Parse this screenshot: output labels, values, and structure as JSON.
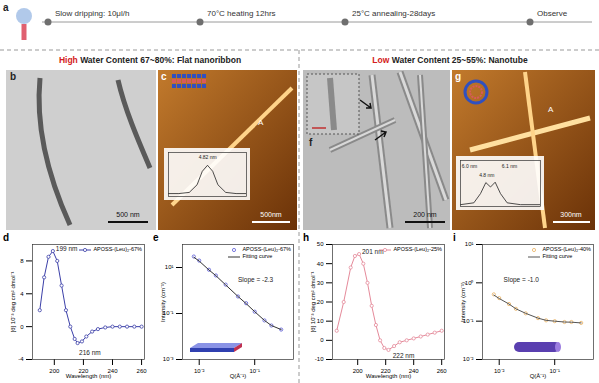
{
  "panel_a": {
    "label": "a",
    "steps": [
      "Slow dripping: 10μl/h",
      "70°C heating 12hrs",
      "25°C annealing-28days",
      "Observe"
    ]
  },
  "sections": [
    {
      "emphasis": "High",
      "title": "Water Content 67~80%: Flat nanoribbon"
    },
    {
      "emphasis": "Low",
      "title": "Water Content 25~55%: Nanotube"
    }
  ],
  "images": [
    {
      "label": "b",
      "scale_bar": "500 nm"
    },
    {
      "label": "c",
      "scale_bar": "500nm",
      "marker": "A"
    },
    {
      "label": "f",
      "scale_bar": "200 nm"
    },
    {
      "label": "g",
      "scale_bar": "300nm",
      "marker": "A"
    }
  ],
  "chart_data": [
    {
      "label": "d",
      "type": "line",
      "xlabel": "Wavelength (nm)",
      "ylabel": "[θ] 10⁻³ deg cm² dmol⁻¹",
      "x": [
        190,
        193,
        196,
        199,
        202,
        205,
        208,
        211,
        214,
        216,
        219,
        222,
        226,
        230,
        235,
        240,
        245,
        250,
        255,
        260
      ],
      "series": [
        {
          "name": "APOSS-(Leu)₂-67%",
          "color": "#3b3fa8",
          "marker": "circle",
          "line_style": "solid",
          "values": [
            2,
            6,
            8.5,
            9.2,
            8,
            5,
            2,
            0,
            -1.5,
            -2,
            -1.8,
            -1.2,
            -0.6,
            -0.3,
            -0.1,
            0,
            0,
            0,
            0,
            0
          ]
        }
      ],
      "xlim": [
        185,
        262
      ],
      "xticks": [
        200,
        220,
        240,
        260
      ],
      "ylim": [
        -4,
        10
      ],
      "yticks": [
        -4,
        0,
        4,
        8
      ],
      "legend": "top-right",
      "annotations": [
        {
          "text": "199 nm",
          "x": 201,
          "y": 9.5
        },
        {
          "text": "216 nm",
          "x": 217,
          "y": -3.2
        }
      ]
    },
    {
      "label": "e",
      "type": "line",
      "log": true,
      "xlabel": "Q(Å⁻¹)",
      "ylabel": "Intensity (cm⁻¹)",
      "x": [
        0.008,
        0.01,
        0.015,
        0.02,
        0.03,
        0.05,
        0.07,
        0.1,
        0.15,
        0.2,
        0.3
      ],
      "series": [
        {
          "name": "APOSS-(Leu)₂-67%",
          "color": "#5b5bd6",
          "marker": "circle",
          "line_style": "none",
          "values": [
            30,
            20,
            8,
            4.5,
            1.8,
            0.55,
            0.28,
            0.12,
            0.05,
            0.03,
            0.02
          ]
        },
        {
          "name": "Fitting curve",
          "color": "#333333",
          "line_style": "solid",
          "values": [
            28,
            19,
            7.8,
            4.4,
            1.75,
            0.55,
            0.27,
            0.12,
            0.05,
            0.03,
            0.02
          ]
        }
      ],
      "xlim": [
        0.005,
        0.5
      ],
      "xticks": [
        {
          "value": 0.01,
          "label": "10⁻²"
        },
        {
          "value": 0.1,
          "label": "10⁻¹"
        }
      ],
      "ylim": [
        0.001,
        100
      ],
      "yticks": [
        {
          "value": 0.001,
          "label": "10⁻³"
        },
        {
          "value": 0.1,
          "label": "10⁻¹"
        },
        {
          "value": 10,
          "label": "10¹"
        }
      ],
      "legend": "top-right",
      "annotations": [
        {
          "text": "Slope = -2.3",
          "x": 0.05,
          "y": 3
        }
      ]
    },
    {
      "label": "h",
      "type": "line",
      "xlabel": "Wavelength (nm)",
      "ylabel": "[θ] 10⁻³ deg cm² dmol⁻¹",
      "x": [
        185,
        190,
        195,
        198,
        201,
        204,
        207,
        210,
        213,
        216,
        219,
        222,
        226,
        230,
        235,
        240,
        245,
        250,
        255,
        260
      ],
      "series": [
        {
          "name": "APOSS-(Leu)₂-25%",
          "color": "#e58a9a",
          "marker": "circle",
          "line_style": "solid",
          "values": [
            5,
            20,
            38,
            44,
            45,
            40,
            30,
            18,
            8,
            0,
            -4,
            -5,
            -3,
            -1,
            0,
            1,
            2,
            3,
            4,
            5
          ]
        }
      ],
      "xlim": [
        182,
        262
      ],
      "xticks": [
        200,
        220,
        240,
        260
      ],
      "ylim": [
        -10,
        50
      ],
      "yticks": [
        -10,
        0,
        10,
        20,
        30,
        40,
        50
      ],
      "legend": "top-right",
      "annotations": [
        {
          "text": "201 nm",
          "x": 203,
          "y": 46
        },
        {
          "text": "222 nm",
          "x": 225,
          "y": -8
        }
      ]
    },
    {
      "label": "i",
      "type": "line",
      "log": true,
      "xlabel": "Q(Å⁻¹)",
      "ylabel": "Intensity (cm⁻¹)",
      "x": [
        0.008,
        0.01,
        0.015,
        0.02,
        0.03,
        0.05,
        0.07,
        0.1,
        0.15,
        0.2,
        0.3
      ],
      "series": [
        {
          "name": "APOSS-(Leu)₂-40%",
          "color": "#e8b060",
          "marker": "circle",
          "line_style": "none",
          "values": [
            0.5,
            0.4,
            0.28,
            0.21,
            0.16,
            0.12,
            0.105,
            0.1,
            0.095,
            0.095,
            0.09
          ]
        },
        {
          "name": "Fitting curve",
          "color": "#555555",
          "line_style": "solid",
          "values": [
            0.48,
            0.39,
            0.28,
            0.21,
            0.16,
            0.12,
            0.105,
            0.1,
            0.095,
            0.094,
            0.09
          ]
        }
      ],
      "xlim": [
        0.005,
        0.5
      ],
      "xticks": [
        {
          "value": 0.01,
          "label": "10⁻²"
        },
        {
          "value": 0.1,
          "label": "10⁻¹"
        }
      ],
      "ylim": [
        0.01,
        10
      ],
      "yticks": [
        {
          "value": 0.01,
          "label": "10⁻²"
        },
        {
          "value": 0.1,
          "label": "10⁻¹"
        },
        {
          "value": 1,
          "label": "10⁰"
        },
        {
          "value": 10,
          "label": "10¹"
        }
      ],
      "legend": "top-right",
      "annotations": [
        {
          "text": "Slope = -1.0",
          "x": 0.012,
          "y": 1.2
        }
      ]
    },
    {
      "type": "line",
      "tick_labels": false,
      "x": [
        0,
        20,
        40,
        55,
        65,
        75,
        85,
        95,
        110,
        130,
        150
      ],
      "series": [
        {
          "color": "#222222",
          "line_style": "solid",
          "values": [
            0,
            0,
            0.2,
            1.5,
            3.8,
            4.82,
            3.8,
            1.5,
            0.2,
            0,
            0
          ]
        }
      ],
      "xlim": [
        0,
        150
      ],
      "ylim": [
        -0.5,
        7
      ],
      "annotations": [
        {
          "text": "4.82 nm",
          "x": 58,
          "y": 6.2
        }
      ]
    },
    {
      "type": "line",
      "tick_labels": false,
      "x": [
        0,
        20,
        30,
        38,
        45,
        52,
        60,
        70,
        90,
        120
      ],
      "series": [
        {
          "color": "#222222",
          "line_style": "solid",
          "values": [
            0,
            0.5,
            3,
            6.0,
            4.8,
            6.1,
            3,
            0.5,
            0,
            0
          ]
        }
      ],
      "xlim": [
        0,
        120
      ],
      "ylim": [
        -0.5,
        12
      ],
      "annotations": [
        {
          "text": "6.0 nm",
          "x": 2,
          "y": 10.5
        },
        {
          "text": "6.1 nm",
          "x": 62,
          "y": 10.5
        },
        {
          "text": "4.8 nm",
          "x": 28,
          "y": 8
        }
      ]
    }
  ]
}
